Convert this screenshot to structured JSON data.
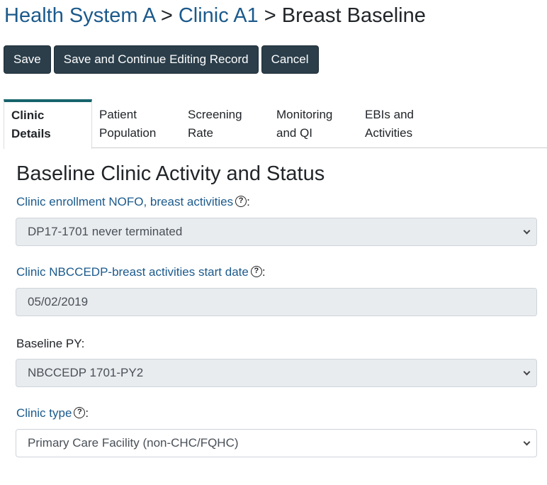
{
  "breadcrumb": {
    "items": [
      "Health System A",
      "Clinic A1"
    ],
    "separator": ">",
    "current": "Breast Baseline"
  },
  "toolbar": {
    "save_label": "Save",
    "save_continue_label": "Save and Continue Editing Record",
    "cancel_label": "Cancel"
  },
  "tabs": [
    {
      "line1": "Clinic",
      "line2": "Details",
      "active": true
    },
    {
      "line1": "Patient",
      "line2": "Population"
    },
    {
      "line1": "Screening",
      "line2": "Rate"
    },
    {
      "line1": "Monitoring",
      "line2": "and QI"
    },
    {
      "line1": "EBIs and",
      "line2": "Activities"
    }
  ],
  "section": {
    "title": "Baseline Clinic Activity and Status",
    "fields": [
      {
        "label": "Clinic enrollment NOFO, breast activities",
        "help": "?",
        "value": "DP17-1701 never terminated",
        "type": "select",
        "disabled": true
      },
      {
        "label": "Clinic NBCCEDP-breast activities start date",
        "help": "?",
        "value": "05/02/2019",
        "type": "date",
        "disabled": true
      },
      {
        "label": "Baseline PY:",
        "value": "NBCCEDP 1701-PY2",
        "type": "select",
        "disabled": true
      },
      {
        "label": "Clinic type",
        "help": "?",
        "value": "Primary Care Facility (non-CHC/FQHC)",
        "type": "select",
        "disabled": false
      }
    ]
  },
  "colors": {
    "link": "#1b5a8c",
    "button": "#2b3e4a",
    "tab_accent": "#16636b",
    "disabled_field": "#e9ecef"
  },
  "icons": {
    "help": "question-circle-icon",
    "dropdown": "chevron-down-icon"
  }
}
